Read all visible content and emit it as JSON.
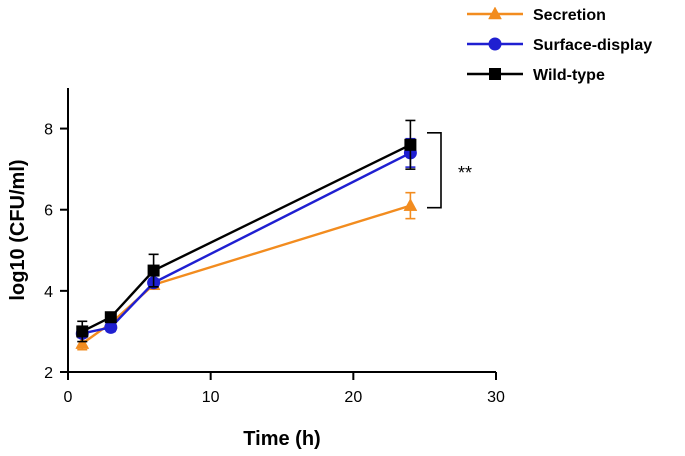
{
  "chart_data": {
    "type": "line",
    "title": "",
    "xlabel": "Time (h)",
    "ylabel": "log10 (CFU/ml)",
    "xlim": [
      0,
      30
    ],
    "ylim": [
      2,
      9
    ],
    "xticks": [
      0,
      10,
      20,
      30
    ],
    "yticks": [
      2,
      4,
      6,
      8
    ],
    "x": [
      1,
      3,
      6,
      24
    ],
    "series": [
      {
        "name": "Secretion",
        "color": "#F28C1F",
        "marker": "triangle",
        "values": [
          2.7,
          3.2,
          4.15,
          6.1
        ],
        "errors": [
          0.15,
          0.1,
          0.1,
          0.32
        ]
      },
      {
        "name": "Surface-display",
        "color": "#1F1FD1",
        "marker": "circle",
        "values": [
          2.95,
          3.1,
          4.2,
          7.4
        ],
        "errors": [
          0.1,
          0.1,
          0.1,
          0.35
        ]
      },
      {
        "name": "Wild-type",
        "color": "#000000",
        "marker": "square",
        "values": [
          3.0,
          3.35,
          4.5,
          7.6
        ],
        "errors": [
          0.25,
          0.1,
          0.4,
          0.6
        ]
      }
    ],
    "legend_position": "top-right",
    "grid": false,
    "annotations": [
      {
        "text": "**",
        "meaning": "significance bracket",
        "between_series": [
          "Secretion",
          "Wild-type"
        ],
        "x": 24
      }
    ]
  }
}
